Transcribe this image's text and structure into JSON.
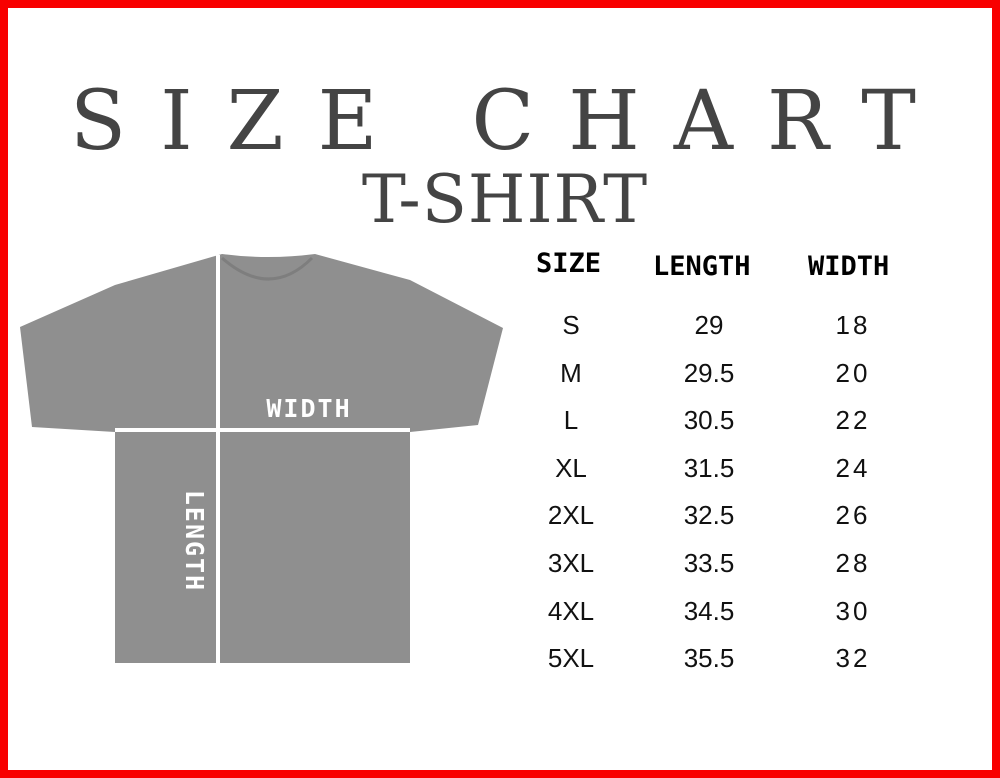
{
  "title": "SIZE CHART",
  "subtitle": "T-SHIRT",
  "diagram": {
    "width_label": "WIDTH",
    "length_label": "LENGTH",
    "shirt_color": "#8f8f8f"
  },
  "border_color": "#f80000",
  "table": {
    "headers": [
      "SIZE",
      "LENGTH",
      "WIDTH"
    ],
    "rows": [
      [
        "S",
        "29",
        "18"
      ],
      [
        "M",
        "29.5",
        "20"
      ],
      [
        "L",
        "30.5",
        "22"
      ],
      [
        "XL",
        "31.5",
        "24"
      ],
      [
        "2XL",
        "32.5",
        "26"
      ],
      [
        "3XL",
        "33.5",
        "28"
      ],
      [
        "4XL",
        "34.5",
        "30"
      ],
      [
        "5XL",
        "35.5",
        "32"
      ]
    ]
  }
}
